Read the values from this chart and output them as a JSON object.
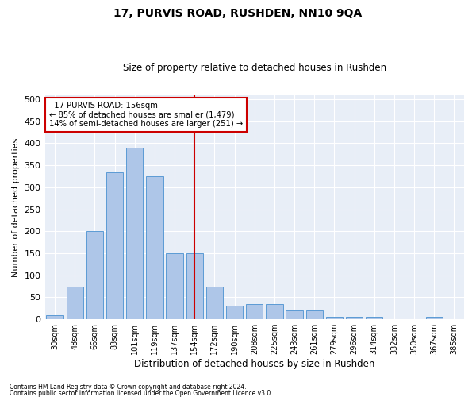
{
  "title": "17, PURVIS ROAD, RUSHDEN, NN10 9QA",
  "subtitle": "Size of property relative to detached houses in Rushden",
  "xlabel": "Distribution of detached houses by size in Rushden",
  "ylabel": "Number of detached properties",
  "footer1": "Contains HM Land Registry data © Crown copyright and database right 2024.",
  "footer2": "Contains public sector information licensed under the Open Government Licence v3.0.",
  "categories": [
    "30sqm",
    "48sqm",
    "66sqm",
    "83sqm",
    "101sqm",
    "119sqm",
    "137sqm",
    "154sqm",
    "172sqm",
    "190sqm",
    "208sqm",
    "225sqm",
    "243sqm",
    "261sqm",
    "279sqm",
    "296sqm",
    "314sqm",
    "332sqm",
    "350sqm",
    "367sqm",
    "385sqm"
  ],
  "values": [
    10,
    75,
    200,
    335,
    390,
    325,
    150,
    150,
    75,
    30,
    35,
    35,
    20,
    20,
    5,
    5,
    5,
    0,
    0,
    5,
    0
  ],
  "bar_color": "#aec6e8",
  "bar_edge_color": "#5b9bd5",
  "background_color": "#e8eef7",
  "grid_color": "#ffffff",
  "vline_x": 7.0,
  "vline_color": "#cc0000",
  "annotation_line1": "  17 PURVIS ROAD: 156sqm",
  "annotation_line2": "← 85% of detached houses are smaller (1,479)",
  "annotation_line3": "14% of semi-detached houses are larger (251) →",
  "annotation_box_color": "#cc0000",
  "ylim": [
    0,
    510
  ],
  "yticks": [
    0,
    50,
    100,
    150,
    200,
    250,
    300,
    350,
    400,
    450,
    500
  ],
  "title_fontsize": 10,
  "subtitle_fontsize": 8.5
}
